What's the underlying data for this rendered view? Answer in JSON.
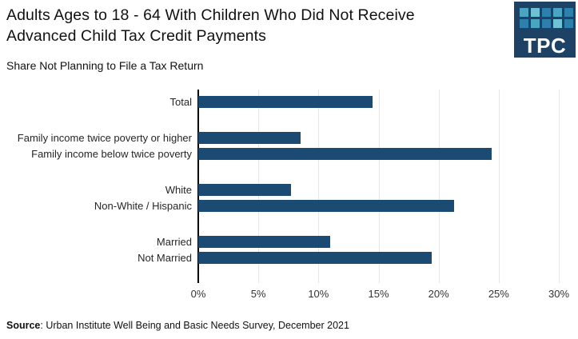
{
  "header": {
    "title_lines": [
      "Adults Ages to 18 - 64 With Children Who Did Not Receive",
      "Advanced Child Tax Credit Payments"
    ],
    "subtitle": "Share Not Planning to File a Tax Return",
    "logo_text": "TPC",
    "logo_bg_color": "#1e4266",
    "logo_square_colors": [
      [
        "#4aa5c2",
        "#6fc2d6",
        "#2d80ad",
        "#4aa5c2",
        "#2d80ad"
      ],
      [
        "#2d80ad",
        "#4aa5c2",
        "#2d80ad",
        "#6fc2d6",
        "#2d80ad"
      ]
    ]
  },
  "chart_data": {
    "type": "bar",
    "orientation": "horizontal",
    "title": "Adults Ages to 18 - 64 With Children Who Did Not Receive Advanced Child Tax Credit Payments",
    "subtitle": "Share Not Planning to File a Tax Return",
    "xlabel": "",
    "ylabel": "",
    "xlim": [
      0,
      30
    ],
    "grid": true,
    "bar_color": "#1b4a73",
    "x_tick_values": [
      0,
      5,
      10,
      15,
      20,
      25,
      30
    ],
    "x_tick_labels": [
      "0%",
      "5%",
      "10%",
      "15%",
      "20%",
      "25%",
      "30%"
    ],
    "groups": [
      {
        "bars": [
          {
            "label": "Total",
            "value": 14.5
          }
        ]
      },
      {
        "bars": [
          {
            "label": "Family income twice poverty or higher",
            "value": 8.5
          },
          {
            "label": "Family income below twice poverty",
            "value": 24.4
          }
        ]
      },
      {
        "bars": [
          {
            "label": "White",
            "value": 7.7
          },
          {
            "label": "Non-White / Hispanic",
            "value": 21.3
          }
        ]
      },
      {
        "bars": [
          {
            "label": "Married",
            "value": 11.0
          },
          {
            "label": "Not Married",
            "value": 19.4
          }
        ]
      }
    ]
  },
  "footer": {
    "source_label": "Source",
    "source_rest": ": Urban Institute Well Being and Basic Needs Survey, December 2021"
  }
}
